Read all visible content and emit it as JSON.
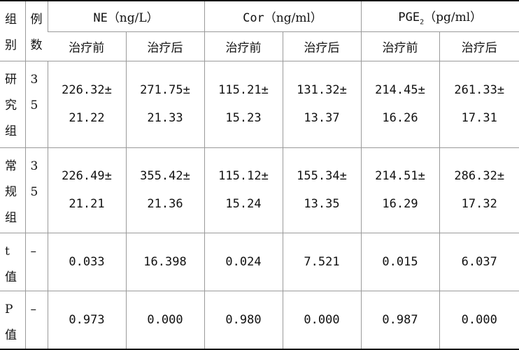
{
  "table": {
    "header": {
      "group_label": [
        "组",
        "别"
      ],
      "count_label": [
        "例",
        "数"
      ],
      "metrics": [
        {
          "name": "NE",
          "unit": "（ng/L）"
        },
        {
          "name": "Cor",
          "unit": "（ng/ml）"
        },
        {
          "name": "PGE",
          "sub": "2",
          "unit": "（pg/ml）"
        }
      ],
      "subheaders": [
        "治疗前",
        "治疗后",
        "治疗前",
        "治疗后",
        "治疗前",
        "治疗后"
      ]
    },
    "rows": [
      {
        "group": [
          "研",
          "究",
          "组"
        ],
        "count": [
          "3",
          "5"
        ],
        "cells": [
          [
            "226.32±",
            "21.22"
          ],
          [
            "271.75±",
            "21.33"
          ],
          [
            "115.21±",
            "15.23"
          ],
          [
            "131.32±",
            "13.37"
          ],
          [
            "214.45±",
            "16.26"
          ],
          [
            "261.33±",
            "17.31"
          ]
        ]
      },
      {
        "group": [
          "常",
          "规",
          "组"
        ],
        "count": [
          "3",
          "5"
        ],
        "cells": [
          [
            "226.49±",
            "21.21"
          ],
          [
            "355.42±",
            "21.36"
          ],
          [
            "115.12±",
            "15.24"
          ],
          [
            "155.34±",
            "13.35"
          ],
          [
            "214.51±",
            "16.29"
          ],
          [
            "286.32±",
            "17.32"
          ]
        ]
      },
      {
        "group": [
          "t",
          "值"
        ],
        "count": [
          "–"
        ],
        "cells": [
          [
            "0.033"
          ],
          [
            "16.398"
          ],
          [
            "0.024"
          ],
          [
            "7.521"
          ],
          [
            "0.015"
          ],
          [
            "6.037"
          ]
        ]
      },
      {
        "group": [
          "P",
          "值"
        ],
        "count": [
          "–"
        ],
        "cells": [
          [
            "0.973"
          ],
          [
            "0.000"
          ],
          [
            "0.980"
          ],
          [
            "0.000"
          ],
          [
            "0.987"
          ],
          [
            "0.000"
          ]
        ]
      }
    ]
  }
}
